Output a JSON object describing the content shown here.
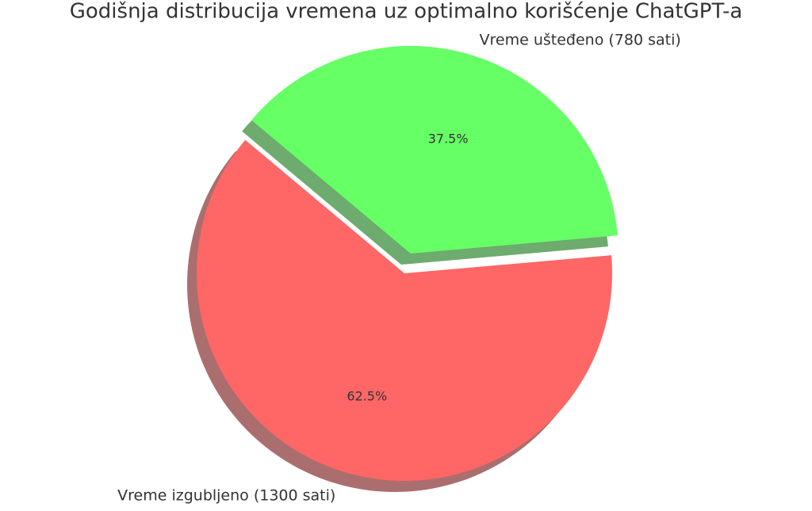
{
  "chart_data": {
    "type": "pie",
    "title": "Godišnja distribucija vremena uz optimalno korišćenje ChatGPT-a",
    "categories": [
      "Vreme izgubljeno (1300 sati)",
      "Vreme ušteđeno (780 sati)"
    ],
    "values": [
      62.5,
      37.5
    ],
    "value_labels": [
      "62.5%",
      "37.5%"
    ],
    "colors": [
      "#ff6666",
      "#66ff66"
    ],
    "shadow": true
  }
}
